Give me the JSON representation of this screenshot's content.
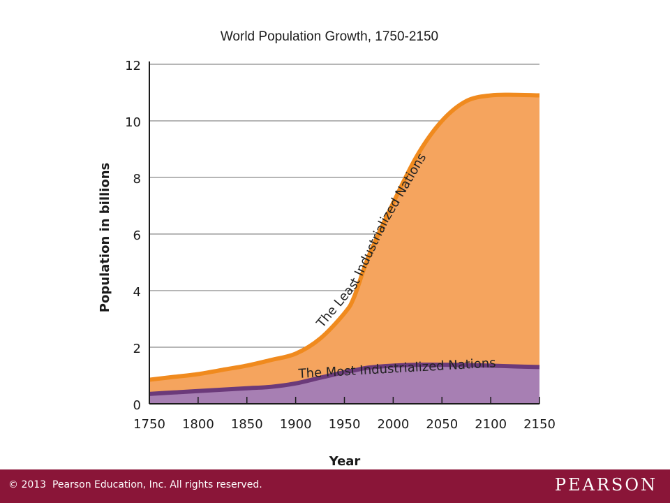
{
  "chart_data": {
    "type": "area",
    "title": "World Population Growth, 1750-2150",
    "xlabel": "Year",
    "ylabel": "Population in billions",
    "xlim": [
      1750,
      2150
    ],
    "ylim": [
      0,
      12
    ],
    "x_ticks": [
      1750,
      1800,
      1850,
      1900,
      1950,
      2000,
      2050,
      2100,
      2150
    ],
    "y_ticks": [
      0,
      2,
      4,
      6,
      8,
      10,
      12
    ],
    "grid": "horizontal",
    "stacked": true,
    "x": [
      1750,
      1775,
      1800,
      1825,
      1850,
      1875,
      1900,
      1925,
      1950,
      1960,
      1975,
      2000,
      2025,
      2050,
      2075,
      2100,
      2125,
      2150
    ],
    "series": [
      {
        "name": "The Most Industrialized Nations",
        "color": "#a77fb3",
        "line_color": "#6b3a7a",
        "values": [
          0.35,
          0.4,
          0.45,
          0.5,
          0.55,
          0.6,
          0.72,
          0.92,
          1.12,
          1.18,
          1.28,
          1.35,
          1.38,
          1.38,
          1.37,
          1.35,
          1.32,
          1.3
        ]
      },
      {
        "name": "The Least Industrialized Nations",
        "color": "#f5a45e",
        "line_color": "#f08a1e",
        "values": [
          0.5,
          0.55,
          0.6,
          0.7,
          0.8,
          0.95,
          1.05,
          1.38,
          2.08,
          2.6,
          3.95,
          5.75,
          7.42,
          8.62,
          9.33,
          9.55,
          9.6,
          9.6
        ]
      }
    ]
  },
  "footer": {
    "copyright": "© 2013  Pearson Education, Inc. All rights reserved.",
    "brand": "PEARSON"
  }
}
